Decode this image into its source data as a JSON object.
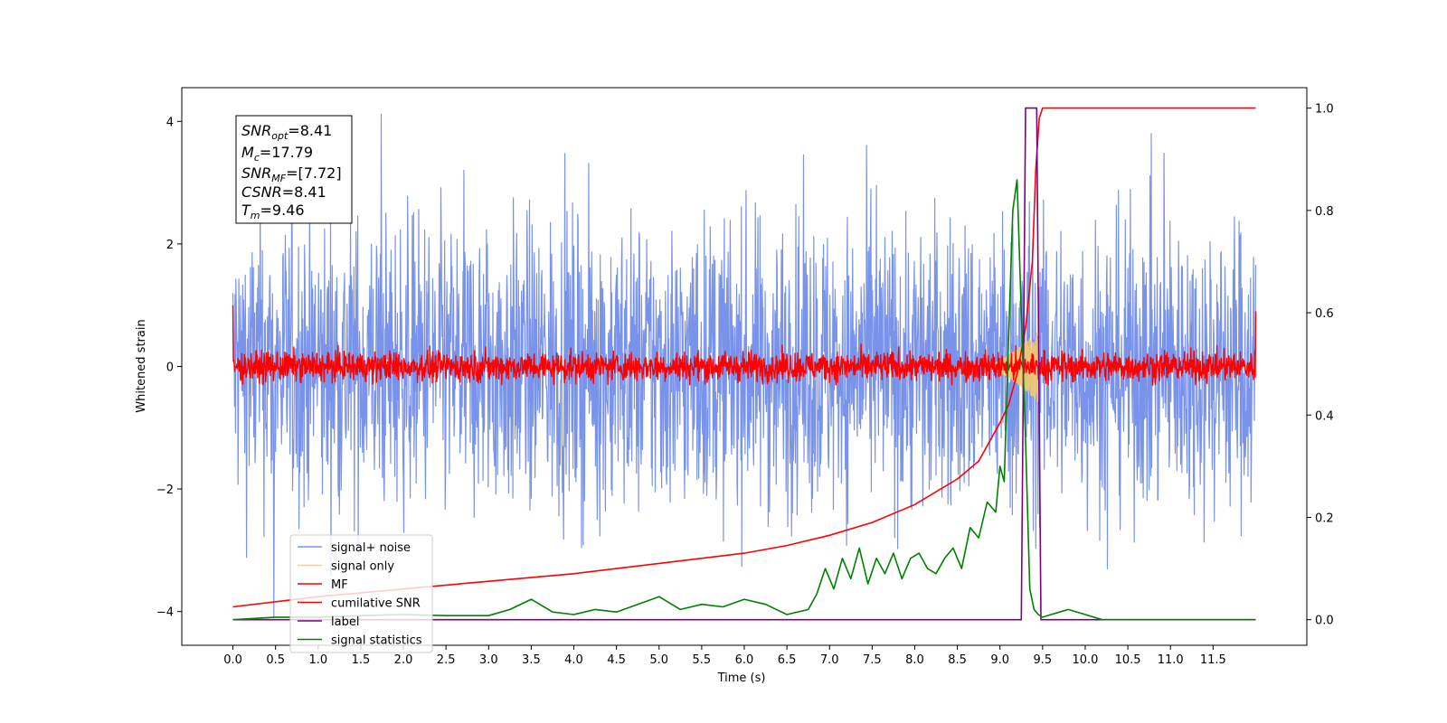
{
  "chart_data": {
    "type": "line",
    "xlabel": "Time (s)",
    "ylabel": "Whitened strain",
    "xlim": [
      -0.6,
      12.6
    ],
    "ylim": [
      -4.55,
      4.55
    ],
    "y2lim": [
      -0.05,
      1.04
    ],
    "x_ticks": [
      "0.0",
      "0.5",
      "1.0",
      "1.5",
      "2.0",
      "2.5",
      "3.0",
      "3.5",
      "4.0",
      "4.5",
      "5.0",
      "5.5",
      "6.0",
      "6.5",
      "7.0",
      "7.5",
      "8.0",
      "8.5",
      "9.0",
      "9.5",
      "10.0",
      "10.5",
      "11.0",
      "11.5"
    ],
    "y_ticks": [
      "4",
      "2",
      "0",
      "−2",
      "−4"
    ],
    "y2_ticks": [
      "1.0",
      "0.8",
      "0.6",
      "0.4",
      "0.2",
      "0.0"
    ],
    "grid": false,
    "legend_position": "lower-left",
    "info_box": {
      "snr_opt": {
        "base": "SNR",
        "sub": "opt",
        "value": "=8.41"
      },
      "mc": {
        "base": "M",
        "sub": "c",
        "value": "=17.79"
      },
      "snr_mf": {
        "base": "SNR",
        "sub": "MF",
        "value": "=[7.72]"
      },
      "csnr": {
        "base": "CSNR",
        "value": "=8.41"
      },
      "tm": {
        "base": "T",
        "sub": "m",
        "value": "=9.46"
      }
    },
    "series": [
      {
        "name": "signal+ noise",
        "axis": "left",
        "color": "#6b87e8",
        "kind": "noise",
        "x_range": [
          0,
          12.0
        ],
        "typical_amplitude": 1.6,
        "peaks": [
          4.12,
          -4.1
        ]
      },
      {
        "name": "signal only",
        "axis": "left",
        "color": "#f5c96a",
        "kind": "chirp",
        "x_range": [
          8.8,
          9.46
        ],
        "peak_amplitude": 0.6
      },
      {
        "name": "MF",
        "axis": "left",
        "color": "#ff0000",
        "kind": "noise",
        "x_range": [
          0,
          12.0
        ],
        "typical_amplitude": 0.22,
        "start_spike": 1.0,
        "end_spike": 0.9
      },
      {
        "name": "cumilative SNR",
        "axis": "right",
        "color": "#ff0000",
        "x": [
          0,
          1,
          2,
          3,
          4,
          5,
          6,
          6.5,
          7,
          7.5,
          8,
          8.5,
          8.75,
          9.0,
          9.1,
          9.2,
          9.3,
          9.38,
          9.42,
          9.46,
          9.5,
          12.0
        ],
        "y": [
          0.025,
          0.045,
          0.06,
          0.075,
          0.09,
          0.11,
          0.13,
          0.145,
          0.165,
          0.19,
          0.225,
          0.275,
          0.31,
          0.385,
          0.42,
          0.48,
          0.57,
          0.7,
          0.88,
          0.98,
          1.0,
          1.0
        ]
      },
      {
        "name": "label",
        "axis": "right",
        "color": "#800080",
        "x": [
          0,
          9.25,
          9.3,
          9.43,
          9.48,
          12.0
        ],
        "y": [
          0,
          0,
          1,
          1,
          0,
          0
        ]
      },
      {
        "name": "signal statistics",
        "axis": "right",
        "color": "#008000",
        "x": [
          0,
          0.5,
          1.0,
          1.5,
          2.0,
          2.5,
          3.0,
          3.25,
          3.5,
          3.75,
          4.0,
          4.25,
          4.5,
          4.75,
          5.0,
          5.25,
          5.5,
          5.75,
          6.0,
          6.25,
          6.5,
          6.75,
          6.85,
          6.95,
          7.05,
          7.15,
          7.25,
          7.35,
          7.45,
          7.55,
          7.65,
          7.75,
          7.85,
          7.95,
          8.05,
          8.15,
          8.25,
          8.35,
          8.45,
          8.55,
          8.65,
          8.75,
          8.85,
          8.95,
          9.0,
          9.05,
          9.1,
          9.15,
          9.2,
          9.25,
          9.3,
          9.35,
          9.4,
          9.45,
          9.5,
          9.6,
          9.7,
          9.8,
          10.0,
          10.2,
          10.4,
          12.0
        ],
        "y": [
          0.0,
          0.005,
          0.005,
          0.008,
          0.01,
          0.008,
          0.008,
          0.02,
          0.04,
          0.015,
          0.01,
          0.02,
          0.015,
          0.03,
          0.045,
          0.02,
          0.03,
          0.025,
          0.04,
          0.03,
          0.01,
          0.02,
          0.05,
          0.1,
          0.06,
          0.12,
          0.08,
          0.14,
          0.07,
          0.12,
          0.09,
          0.13,
          0.08,
          0.12,
          0.13,
          0.1,
          0.09,
          0.12,
          0.14,
          0.1,
          0.18,
          0.16,
          0.23,
          0.21,
          0.3,
          0.27,
          0.55,
          0.8,
          0.86,
          0.6,
          0.35,
          0.06,
          0.02,
          0.01,
          0.005,
          0.01,
          0.015,
          0.02,
          0.01,
          0.0,
          0.0,
          0.0
        ]
      }
    ]
  }
}
